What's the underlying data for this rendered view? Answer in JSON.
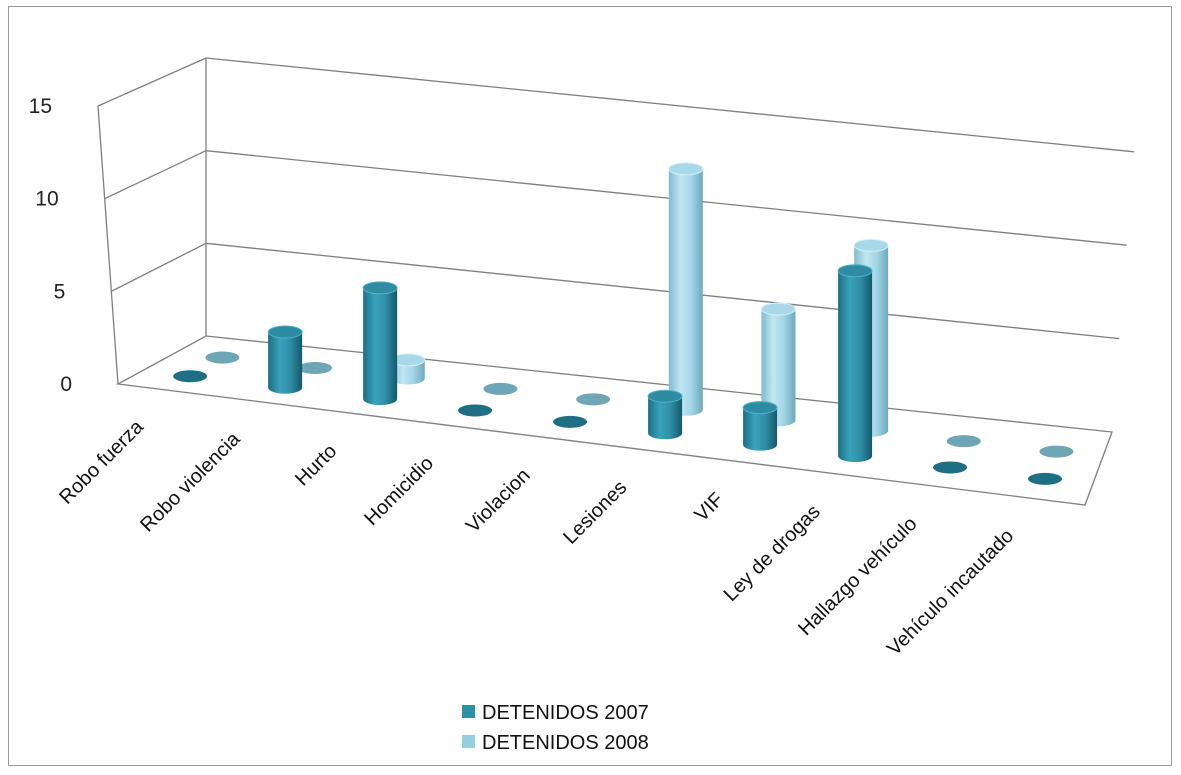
{
  "chart_data": {
    "type": "bar",
    "title": "",
    "xlabel": "",
    "ylabel": "",
    "ylim": [
      0,
      15
    ],
    "yticks": [
      "0",
      "5",
      "10",
      "15"
    ],
    "grid": true,
    "legend_position": "bottom",
    "categories": [
      "Robo fuerza",
      "Robo violencia",
      "Hurto",
      "Homicidio",
      "Violacion",
      "Lesiones",
      "VIF",
      "Ley de drogas",
      "Hallazgo vehículo",
      "Vehículo incautado"
    ],
    "series": [
      {
        "name": "DETENIDOS 2007",
        "color": "#2f8fa6",
        "values": [
          0,
          3,
          6,
          0,
          0,
          2,
          2,
          10,
          0,
          0
        ]
      },
      {
        "name": "DETENIDOS 2008",
        "color": "#96cfe2",
        "values": [
          0,
          0,
          1,
          0,
          0,
          13,
          6,
          10,
          0,
          0
        ]
      }
    ]
  }
}
